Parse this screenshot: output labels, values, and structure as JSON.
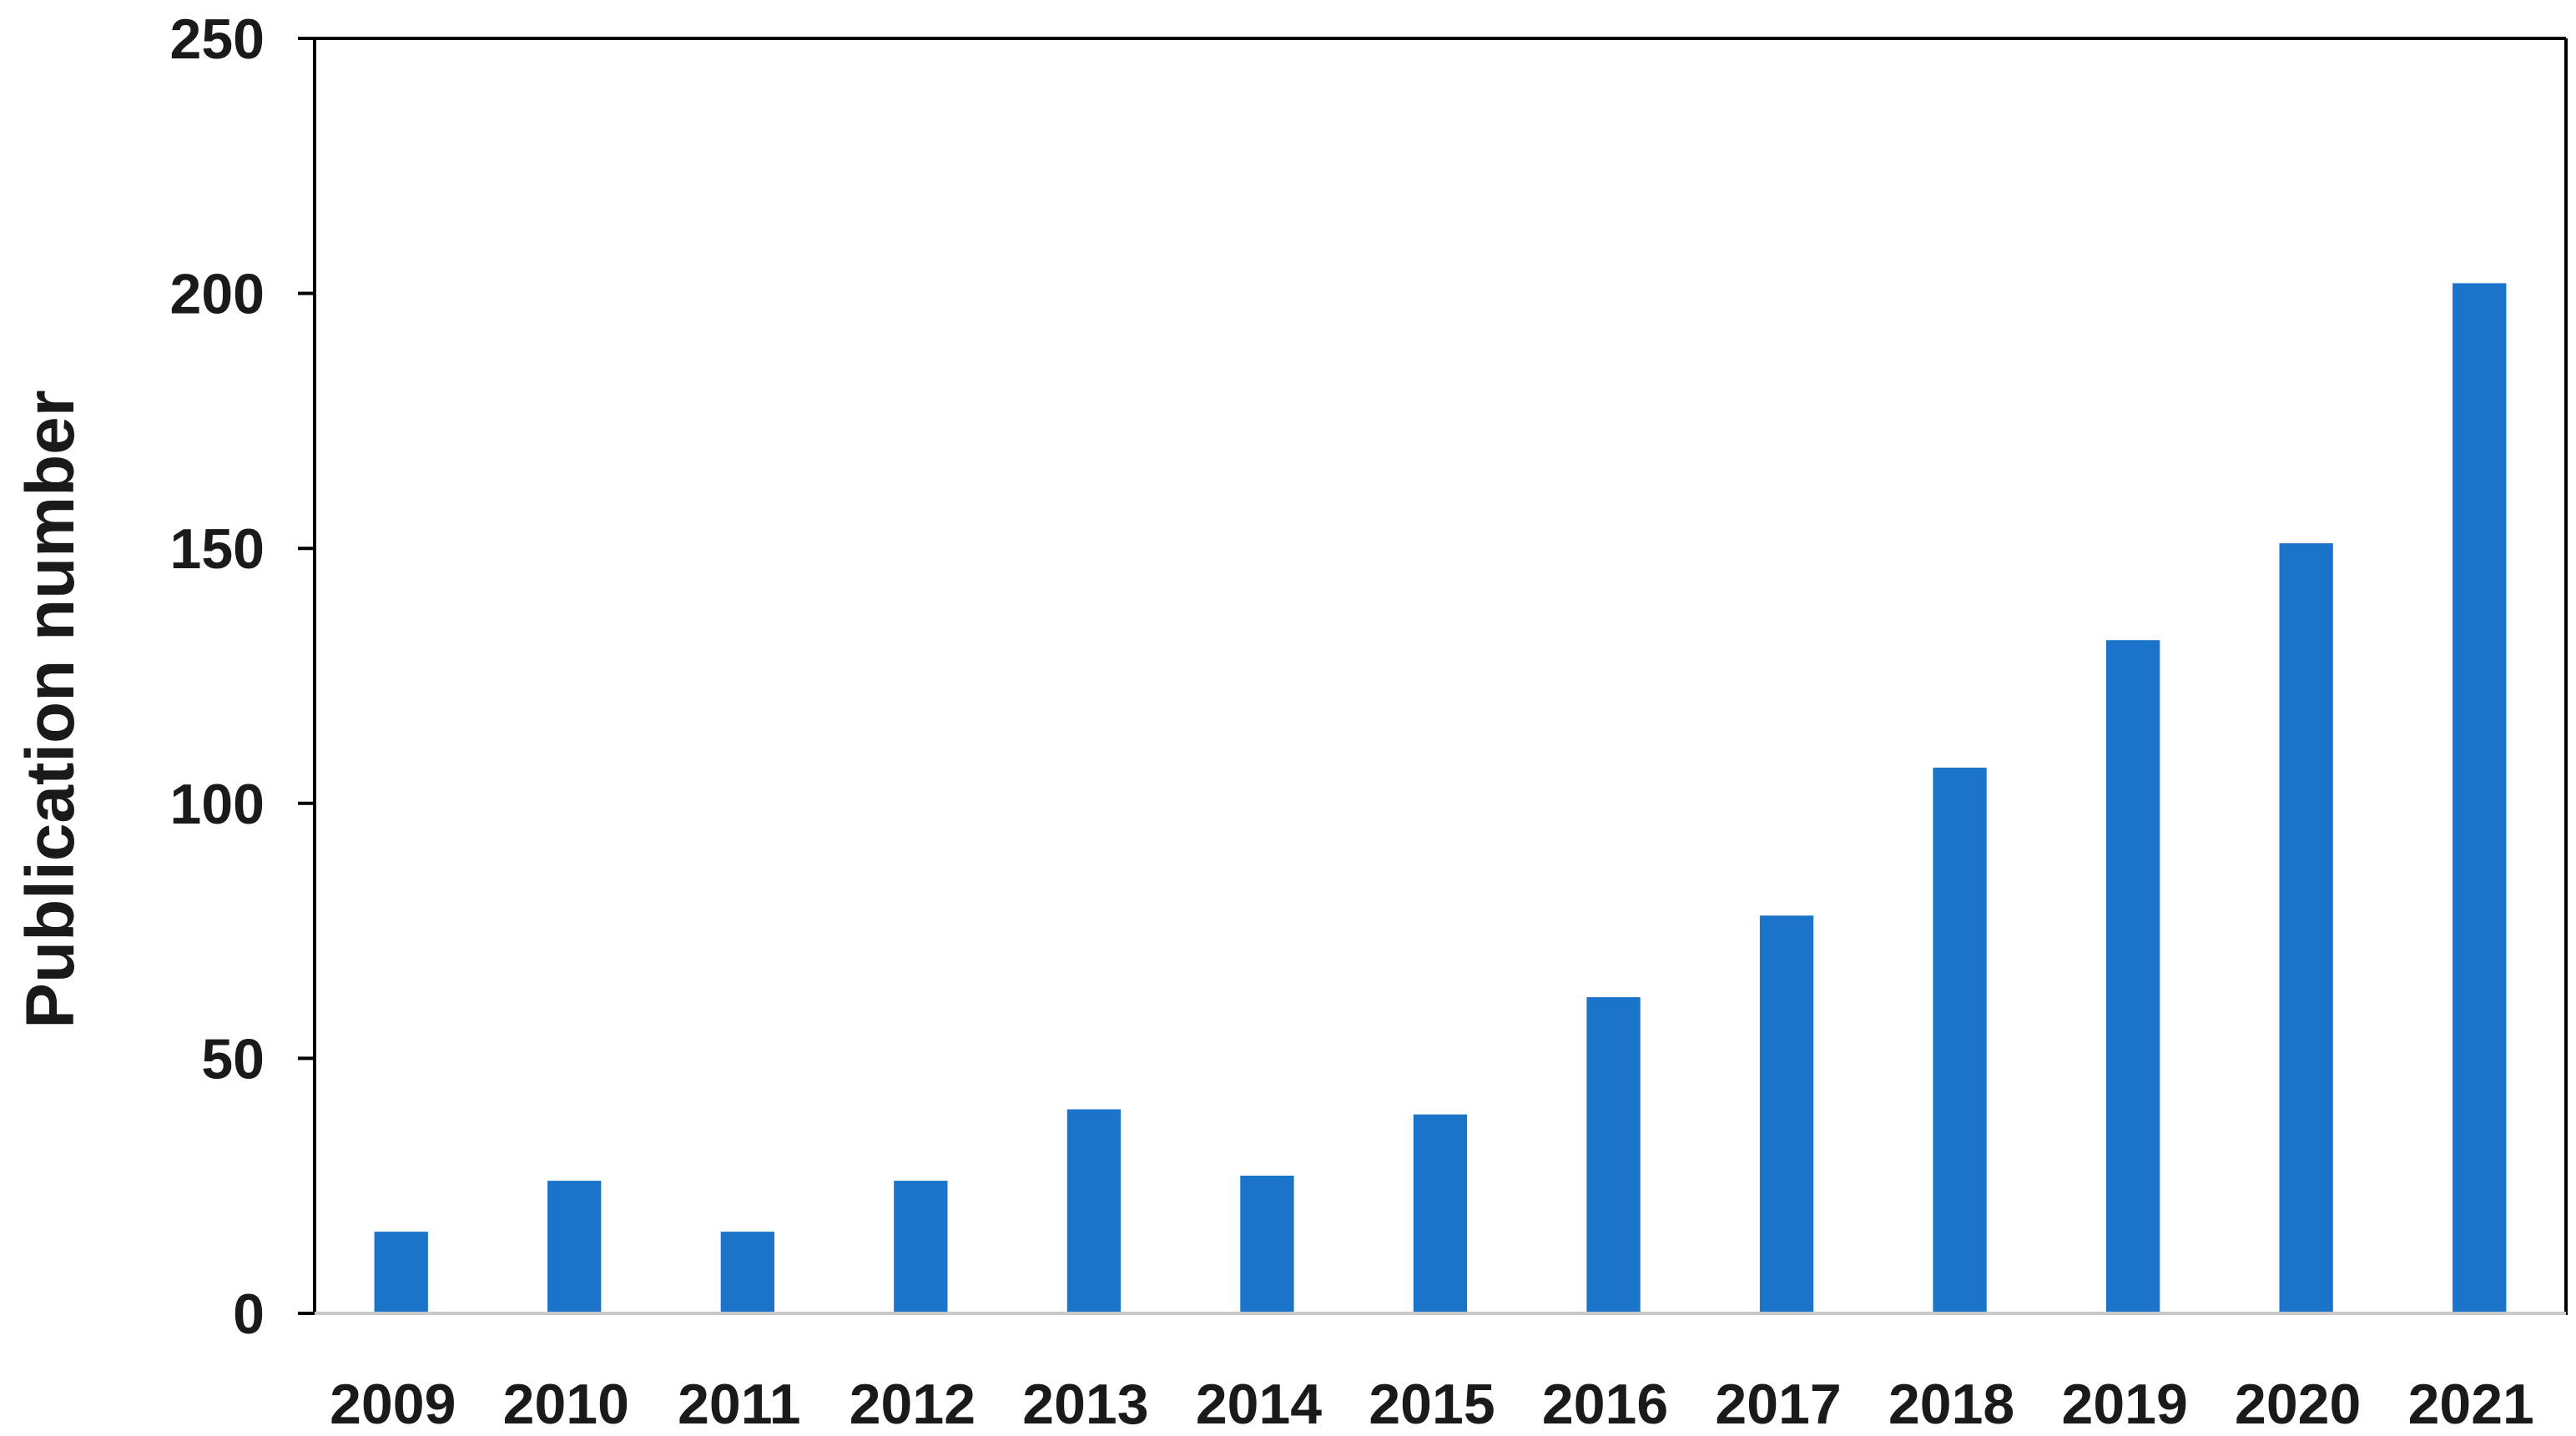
{
  "chart_data": {
    "type": "bar",
    "title": "",
    "xlabel": "",
    "ylabel": "Publication number",
    "categories": [
      "2009",
      "2010",
      "2011",
      "2012",
      "2013",
      "2014",
      "2015",
      "2016",
      "2017",
      "2018",
      "2019",
      "2020",
      "2021"
    ],
    "series": [
      {
        "values": [
          16,
          26,
          16,
          26,
          40,
          27,
          39,
          62,
          78,
          107,
          132,
          151,
          202
        ],
        "color": "#1b74c9"
      }
    ],
    "ylim": [
      0,
      250
    ],
    "yticks": [
      "0",
      "50",
      "100",
      "150",
      "200",
      "250"
    ],
    "grid": false,
    "legend": "none",
    "colors": {
      "bar": "#1b74c9",
      "axis": "#000000",
      "text": "#1a1a1a"
    }
  }
}
